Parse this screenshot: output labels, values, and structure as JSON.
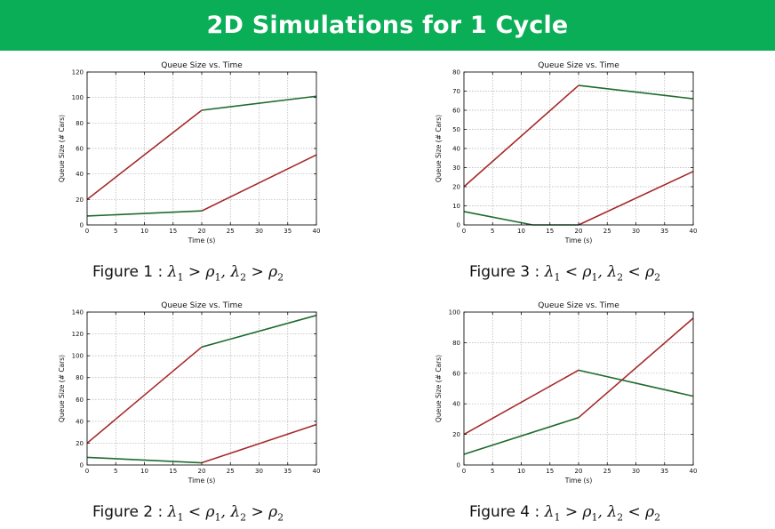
{
  "header": {
    "title": "2D Simulations for 1 Cycle"
  },
  "colors": {
    "banner": "#0aae56",
    "red_series": "#a52a2a",
    "green_series": "#1f6b2e",
    "grid": "#b4b4b4"
  },
  "figures": [
    {
      "caption": {
        "label": "Figure 1 :",
        "c1": "λ₁ > ρ₁,",
        "c2": "λ₂ > ρ₂"
      },
      "chart_data": {
        "type": "line",
        "title": "Queue Size vs. Time",
        "xlabel": "Time (s)",
        "ylabel": "Queue Size (# Cars)",
        "xlim": [
          0,
          40
        ],
        "ylim": [
          0,
          120
        ],
        "x_ticks": [
          0,
          5,
          10,
          15,
          20,
          25,
          30,
          35,
          40
        ],
        "y_ticks": [
          0,
          20,
          40,
          60,
          80,
          100,
          120
        ],
        "grid": true,
        "series": [
          {
            "color": "red",
            "x": [
              0,
              20
            ],
            "y": [
              20,
              90
            ]
          },
          {
            "color": "red",
            "x": [
              20,
              40
            ],
            "y": [
              11,
              55
            ]
          },
          {
            "color": "green",
            "x": [
              0,
              20
            ],
            "y": [
              7,
              11
            ]
          },
          {
            "color": "green",
            "x": [
              20,
              40
            ],
            "y": [
              90,
              101
            ]
          }
        ]
      }
    },
    {
      "caption": {
        "label": "Figure 3 :",
        "c1": "λ₁ < ρ₁,",
        "c2": "λ₂ < ρ₂"
      },
      "chart_data": {
        "type": "line",
        "title": "Queue Size vs. Time",
        "xlabel": "Time (s)",
        "ylabel": "Queue Size (# Cars)",
        "xlim": [
          0,
          40
        ],
        "ylim": [
          0,
          80
        ],
        "x_ticks": [
          0,
          5,
          10,
          15,
          20,
          25,
          30,
          35,
          40
        ],
        "y_ticks": [
          0,
          10,
          20,
          30,
          40,
          50,
          60,
          70,
          80
        ],
        "grid": true,
        "series": [
          {
            "color": "red",
            "x": [
              0,
              20
            ],
            "y": [
              20,
              73
            ]
          },
          {
            "color": "red",
            "x": [
              20,
              40
            ],
            "y": [
              0,
              28
            ]
          },
          {
            "color": "green",
            "x": [
              0,
              12,
              20
            ],
            "y": [
              7,
              0,
              0
            ]
          },
          {
            "color": "green",
            "x": [
              20,
              40
            ],
            "y": [
              73,
              66
            ]
          }
        ]
      }
    },
    {
      "caption": {
        "label": "Figure 2 :",
        "c1": "λ₁ < ρ₁,",
        "c2": "λ₂ > ρ₂"
      },
      "chart_data": {
        "type": "line",
        "title": "Queue Size vs. Time",
        "xlabel": "Time (s)",
        "ylabel": "Queue Size (# Cars)",
        "xlim": [
          0,
          40
        ],
        "ylim": [
          0,
          140
        ],
        "x_ticks": [
          0,
          5,
          10,
          15,
          20,
          25,
          30,
          35,
          40
        ],
        "y_ticks": [
          0,
          20,
          40,
          60,
          80,
          100,
          120,
          140
        ],
        "grid": true,
        "series": [
          {
            "color": "red",
            "x": [
              0,
              20
            ],
            "y": [
              20,
              108
            ]
          },
          {
            "color": "red",
            "x": [
              20,
              40
            ],
            "y": [
              2,
              37
            ]
          },
          {
            "color": "green",
            "x": [
              0,
              20
            ],
            "y": [
              7,
              2
            ]
          },
          {
            "color": "green",
            "x": [
              20,
              40
            ],
            "y": [
              108,
              137
            ]
          }
        ]
      }
    },
    {
      "caption": {
        "label": "Figure 4 :",
        "c1": "λ₁ > ρ₁,",
        "c2": "λ₂ < ρ₂"
      },
      "chart_data": {
        "type": "line",
        "title": "Queue Size vs. Time",
        "xlabel": "Time (s)",
        "ylabel": "Queue Size (# Cars)",
        "xlim": [
          0,
          40
        ],
        "ylim": [
          0,
          100
        ],
        "x_ticks": [
          0,
          5,
          10,
          15,
          20,
          25,
          30,
          35,
          40
        ],
        "y_ticks": [
          0,
          20,
          40,
          60,
          80,
          100
        ],
        "grid": true,
        "series": [
          {
            "color": "red",
            "x": [
              0,
              20
            ],
            "y": [
              20,
              62
            ]
          },
          {
            "color": "red",
            "x": [
              20,
              40
            ],
            "y": [
              31,
              96
            ]
          },
          {
            "color": "green",
            "x": [
              0,
              20
            ],
            "y": [
              7,
              31
            ]
          },
          {
            "color": "green",
            "x": [
              20,
              40
            ],
            "y": [
              62,
              45
            ]
          }
        ]
      }
    }
  ]
}
